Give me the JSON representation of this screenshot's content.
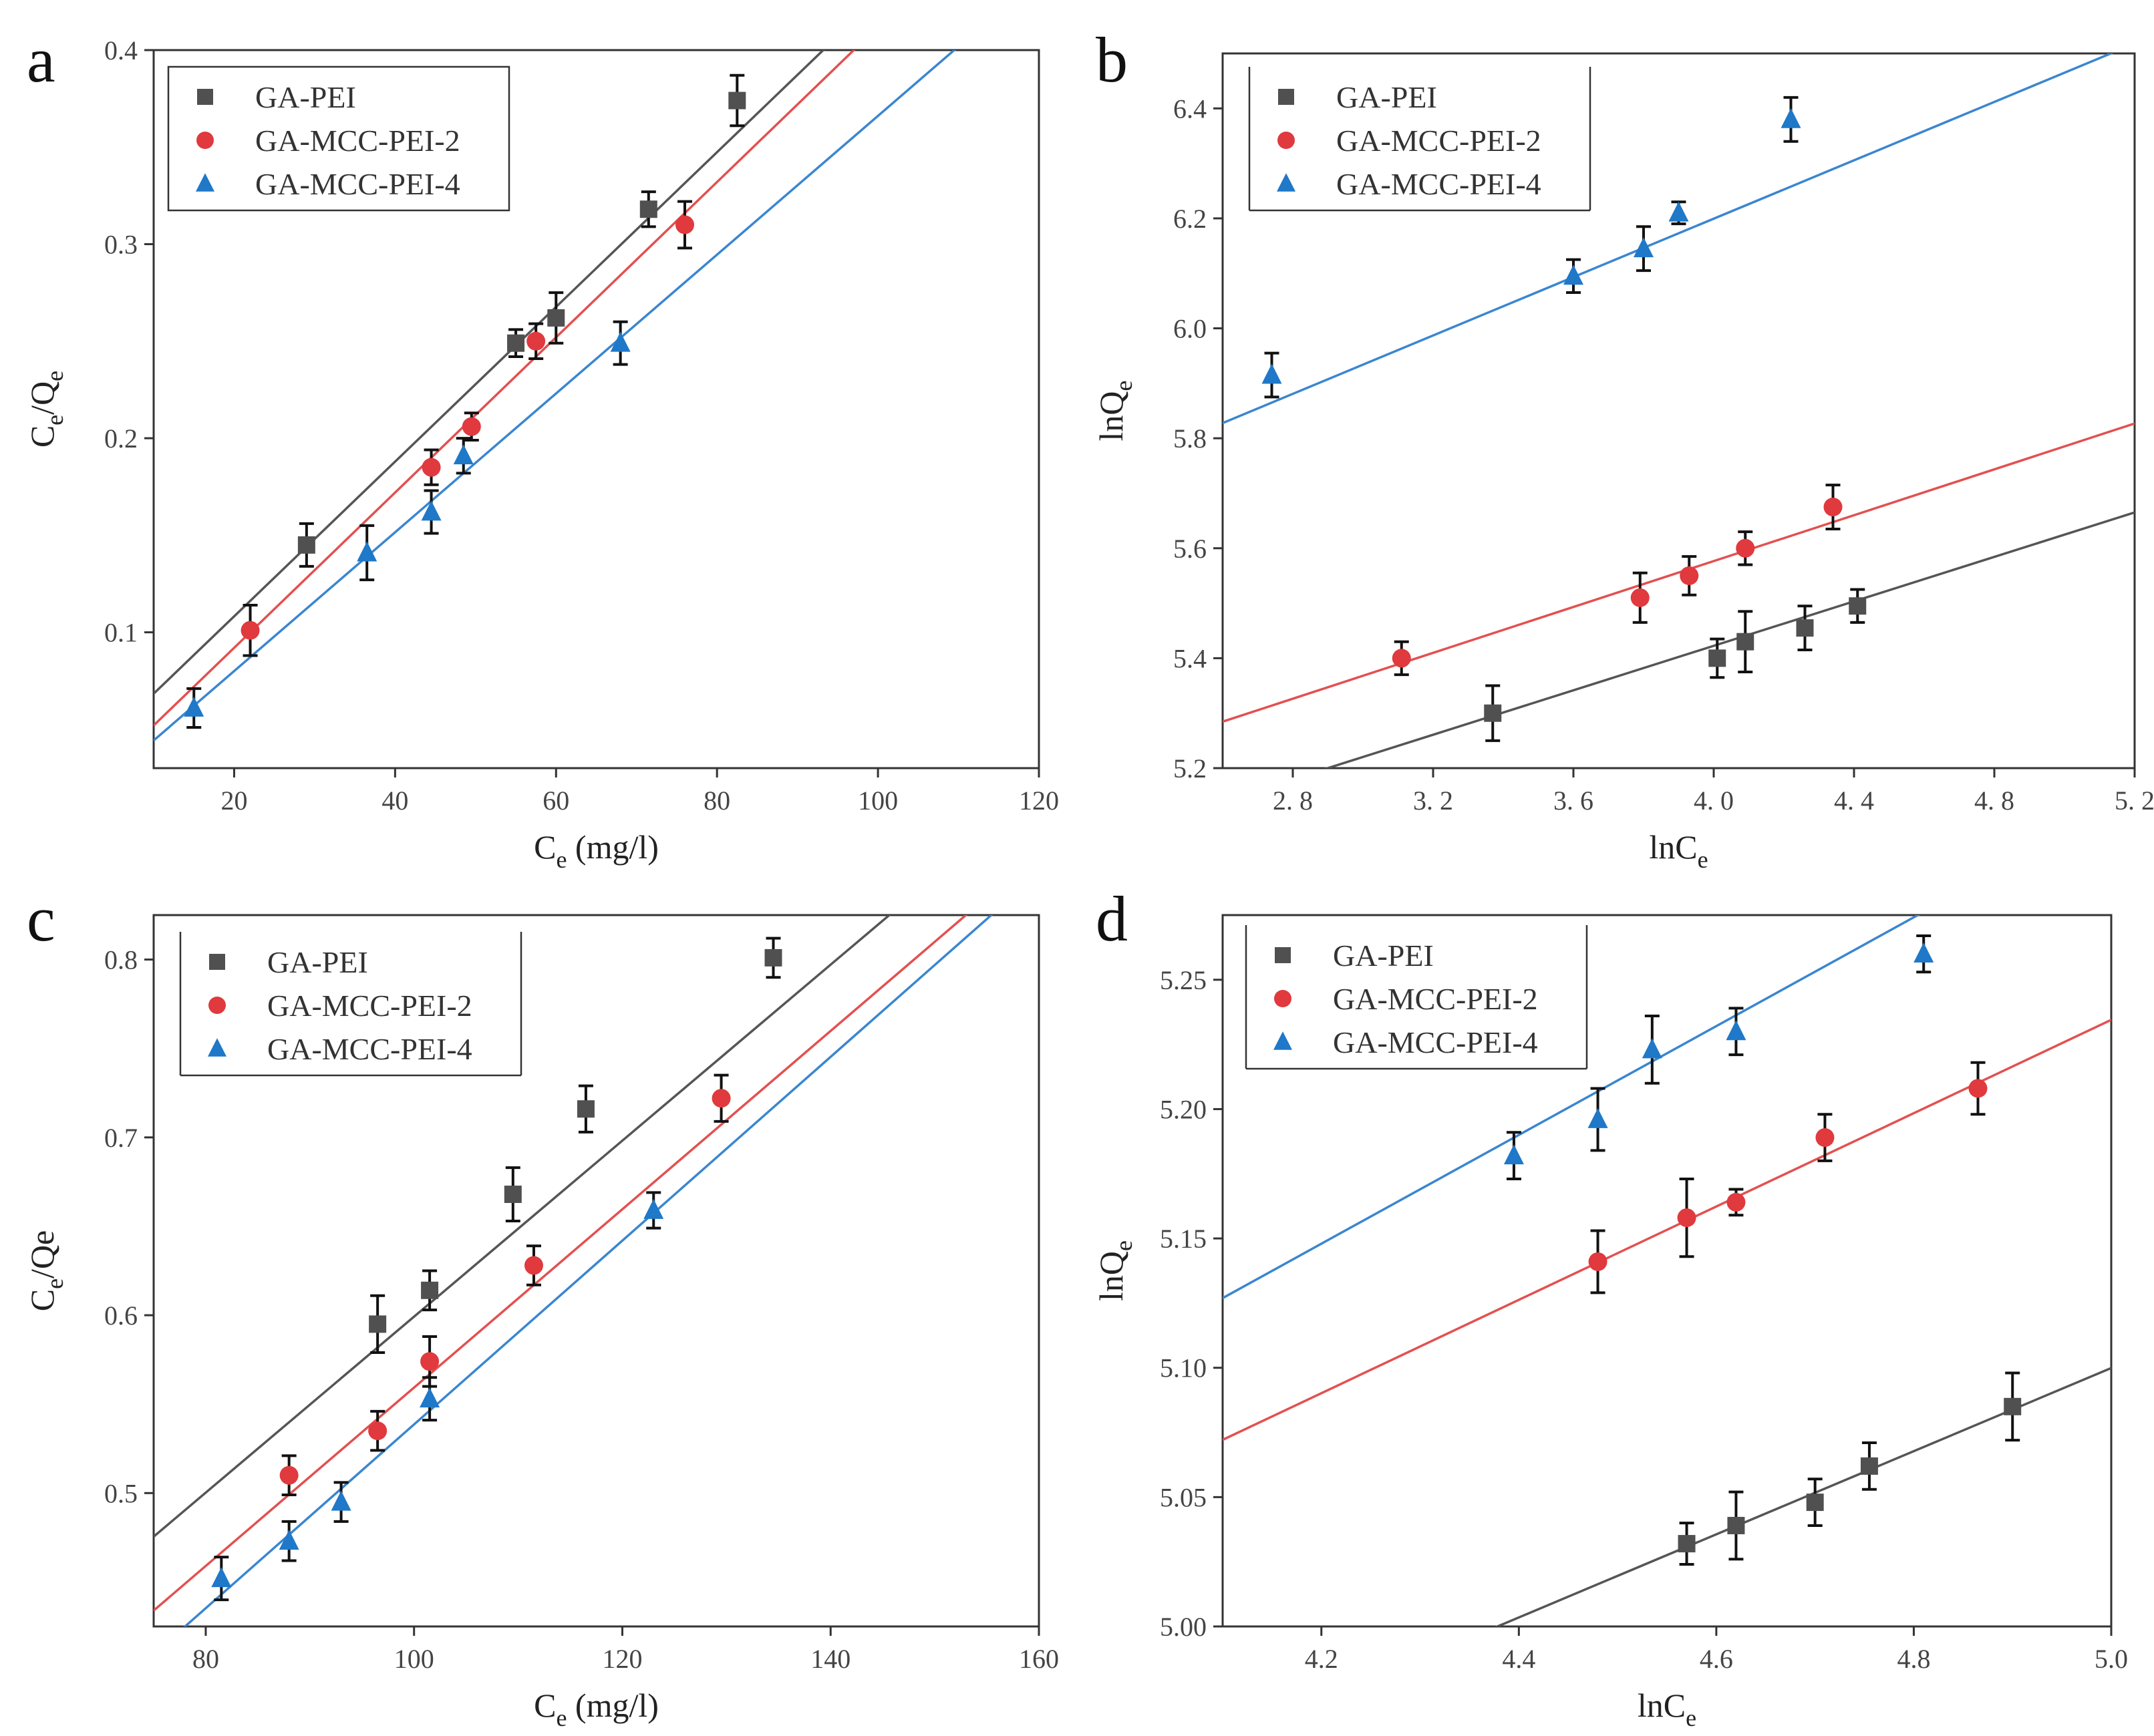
{
  "colors": {
    "GA-PEI": "#505050",
    "GA-MCC-PEI-2": "#e0393e",
    "GA-MCC-PEI-4": "#1f78c8",
    "lines": {
      "GA-PEI": "#555555",
      "GA-MCC-PEI-2": "#e35050",
      "GA-MCC-PEI-4": "#3a86d0"
    }
  },
  "chart_data": [
    {
      "panel": "a",
      "type": "scatter",
      "xlabel": "C",
      "xlabel_sub": "e",
      "xlabel_suffix": " (mg/l)",
      "ylabel": "C",
      "ylabel_sub1": "e",
      "ylabel_mid": "/Q",
      "ylabel_sub2": "e",
      "xlim": [
        10,
        120
      ],
      "ylim": [
        0.03,
        0.4
      ],
      "xticks": [
        20,
        40,
        60,
        80,
        100,
        120
      ],
      "xtick_labels": [
        "20",
        "40",
        "60",
        "80",
        "100",
        "120"
      ],
      "yticks": [
        0.1,
        0.2,
        0.3,
        0.4
      ],
      "ytick_labels": [
        "0.1",
        "0.2",
        "0.3",
        "0.4"
      ],
      "legend_position": "top-left",
      "series": [
        {
          "name": "GA-PEI",
          "marker": "square",
          "x": [
            29,
            55,
            60,
            71.5,
            82.5
          ],
          "y": [
            0.145,
            0.249,
            0.262,
            0.318,
            0.374
          ],
          "err": [
            0.011,
            0.007,
            0.013,
            0.009,
            0.013
          ],
          "fit": {
            "slope": 0.003986,
            "intercept": 0.0285
          }
        },
        {
          "name": "GA-MCC-PEI-2",
          "marker": "circle",
          "x": [
            22,
            44.5,
            49.5,
            57.5,
            76
          ],
          "y": [
            0.101,
            0.185,
            0.206,
            0.25,
            0.31
          ],
          "err": [
            0.013,
            0.009,
            0.007,
            0.009,
            0.012
          ],
          "fit": {
            "slope": 0.004,
            "intercept": 0.012
          }
        },
        {
          "name": "GA-MCC-PEI-4",
          "marker": "triangle",
          "x": [
            15,
            36.5,
            44.5,
            48.5,
            68
          ],
          "y": [
            0.061,
            0.141,
            0.162,
            0.191,
            0.249
          ],
          "err": [
            0.01,
            0.014,
            0.011,
            0.009,
            0.011
          ],
          "fit": {
            "slope": 0.003576,
            "intercept": 0.0085
          }
        }
      ]
    },
    {
      "panel": "b",
      "type": "scatter",
      "xlabel": "lnC",
      "xlabel_sub": "e",
      "xlabel_suffix": "",
      "ylabel": "lnQ",
      "ylabel_sub1": "e",
      "ylabel_mid": "",
      "ylabel_sub2": "",
      "xlim": [
        2.6,
        5.2
      ],
      "ylim": [
        5.2,
        6.5
      ],
      "xticks": [
        2.8,
        3.2,
        3.6,
        4.0,
        4.4,
        4.8,
        5.2
      ],
      "xtick_labels": [
        "2. 8",
        "3. 2",
        "3. 6",
        "4. 0",
        "4. 4",
        "4. 8",
        "5. 2"
      ],
      "yticks": [
        5.2,
        5.4,
        5.6,
        5.8,
        6.0,
        6.2,
        6.4
      ],
      "ytick_labels": [
        "5.2",
        "5.4",
        "5.6",
        "5.8",
        "6.0",
        "6.2",
        "6.4"
      ],
      "legend_position": "top-left",
      "series": [
        {
          "name": "GA-PEI",
          "marker": "square",
          "x": [
            3.37,
            4.01,
            4.09,
            4.26,
            4.41
          ],
          "y": [
            5.3,
            5.4,
            5.43,
            5.455,
            5.495
          ],
          "err": [
            0.05,
            0.035,
            0.055,
            0.04,
            0.03
          ],
          "fit": {
            "slope": 0.2022,
            "intercept": 4.6137
          }
        },
        {
          "name": "GA-MCC-PEI-2",
          "marker": "circle",
          "x": [
            3.11,
            3.79,
            3.93,
            4.09,
            4.34
          ],
          "y": [
            5.4,
            5.51,
            5.55,
            5.6,
            5.675
          ],
          "err": [
            0.03,
            0.045,
            0.035,
            0.03,
            0.04
          ],
          "fit": {
            "slope": 0.2086,
            "intercept": 4.7422
          }
        },
        {
          "name": "GA-MCC-PEI-4",
          "marker": "triangle",
          "x": [
            2.74,
            3.6,
            3.8,
            3.9,
            4.22
          ],
          "y": [
            5.915,
            6.095,
            6.145,
            6.21,
            6.38
          ],
          "err": [
            0.04,
            0.03,
            0.04,
            0.02,
            0.04
          ],
          "fit": {
            "slope": 0.2655,
            "intercept": 5.1374
          }
        }
      ]
    },
    {
      "panel": "c",
      "type": "scatter",
      "xlabel": "C",
      "xlabel_sub": "e",
      "xlabel_suffix": " (mg/l)",
      "ylabel": "C",
      "ylabel_sub1": "e",
      "ylabel_mid": "/Qe",
      "ylabel_sub2": "",
      "xlim": [
        75,
        160
      ],
      "ylim": [
        0.425,
        0.825
      ],
      "xticks": [
        80,
        100,
        120,
        140,
        160
      ],
      "xtick_labels": [
        "80",
        "100",
        "120",
        "140",
        "160"
      ],
      "yticks": [
        0.5,
        0.6,
        0.7,
        0.8
      ],
      "ytick_labels": [
        "0.5",
        "0.6",
        "0.7",
        "0.8"
      ],
      "legend_position": "top-left",
      "series": [
        {
          "name": "GA-PEI",
          "marker": "square",
          "x": [
            96.5,
            101.5,
            109.5,
            116.5,
            134.5
          ],
          "y": [
            0.595,
            0.614,
            0.668,
            0.716,
            0.801
          ],
          "err": [
            0.016,
            0.011,
            0.015,
            0.013,
            0.011
          ],
          "fit": {
            "slope": 0.004948,
            "intercept": 0.1044
          }
        },
        {
          "name": "GA-MCC-PEI-2",
          "marker": "circle",
          "x": [
            88,
            96.5,
            101.5,
            111.5,
            129.5
          ],
          "y": [
            0.51,
            0.535,
            0.574,
            0.628,
            0.722
          ],
          "err": [
            0.011,
            0.011,
            0.014,
            0.011,
            0.013
          ],
          "fit": {
            "slope": 0.005014,
            "intercept": 0.0579
          }
        },
        {
          "name": "GA-MCC-PEI-4",
          "marker": "triangle",
          "x": [
            81.5,
            88,
            93,
            101.5,
            123
          ],
          "y": [
            0.452,
            0.473,
            0.495,
            0.553,
            0.659
          ],
          "err": [
            0.012,
            0.011,
            0.011,
            0.012,
            0.01
          ],
          "fit": {
            "slope": 0.005167,
            "intercept": 0.0219
          }
        }
      ]
    },
    {
      "panel": "d",
      "type": "scatter",
      "xlabel": "lnC",
      "xlabel_sub": "e",
      "xlabel_suffix": "",
      "ylabel": "lnQ",
      "ylabel_sub1": "e",
      "ylabel_mid": "",
      "ylabel_sub2": "",
      "xlim": [
        4.1,
        5.0
      ],
      "ylim": [
        5.0,
        5.275
      ],
      "xticks": [
        4.2,
        4.4,
        4.6,
        4.8,
        5.0
      ],
      "xtick_labels": [
        "4.2",
        "4.4",
        "4.6",
        "4.8",
        "5.0"
      ],
      "yticks": [
        5.0,
        5.05,
        5.1,
        5.15,
        5.2,
        5.25
      ],
      "ytick_labels": [
        "5.00",
        "5.05",
        "5.10",
        "5.15",
        "5.20",
        "5.25"
      ],
      "legend_position": "top-left",
      "series": [
        {
          "name": "GA-PEI",
          "marker": "square",
          "x": [
            4.57,
            4.62,
            4.7,
            4.755,
            4.9
          ],
          "y": [
            5.032,
            5.039,
            5.048,
            5.062,
            5.085
          ],
          "err": [
            0.008,
            0.013,
            0.009,
            0.009,
            0.013
          ],
          "fit": {
            "slope": 0.1607,
            "intercept": 4.2964
          }
        },
        {
          "name": "GA-MCC-PEI-2",
          "marker": "circle",
          "x": [
            4.48,
            4.57,
            4.62,
            4.71,
            4.865
          ],
          "y": [
            5.141,
            5.158,
            5.164,
            5.189,
            5.208
          ],
          "err": [
            0.012,
            0.015,
            0.005,
            0.009,
            0.01
          ],
          "fit": {
            "slope": 0.1804,
            "intercept": 4.3325
          }
        },
        {
          "name": "GA-MCC-PEI-4",
          "marker": "triangle",
          "x": [
            4.395,
            4.48,
            4.535,
            4.62,
            4.81
          ],
          "y": [
            5.182,
            5.196,
            5.223,
            5.23,
            5.26
          ],
          "err": [
            0.009,
            0.012,
            0.013,
            0.009,
            0.007
          ],
          "fit": {
            "slope": 0.2103,
            "intercept": 4.2647
          }
        }
      ]
    }
  ]
}
